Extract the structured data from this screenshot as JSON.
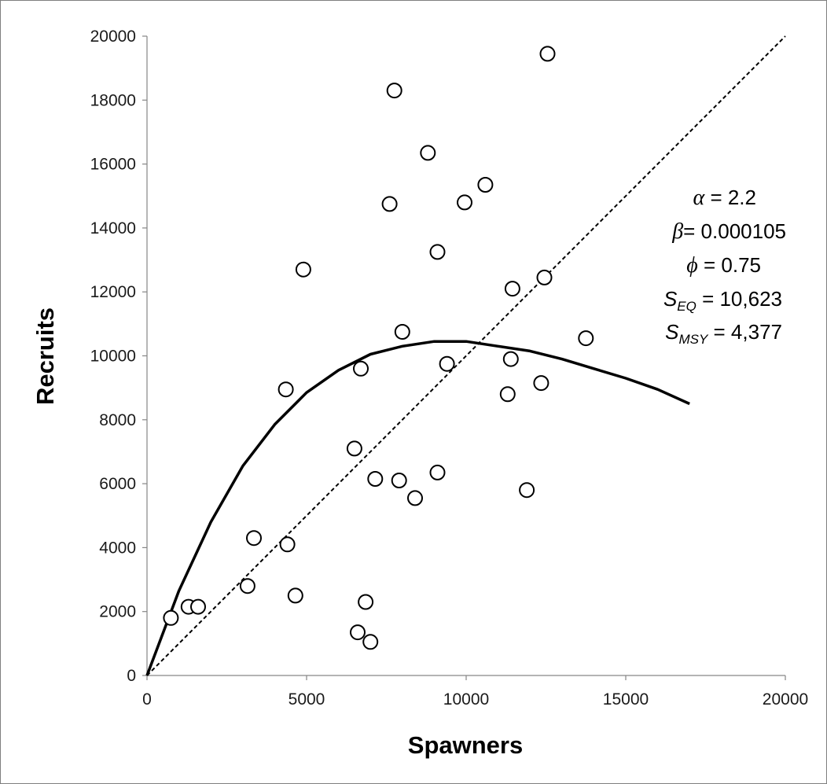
{
  "chart_data": {
    "type": "scatter",
    "title": "",
    "xlabel": "Spawners",
    "ylabel": "Recruits",
    "xlim": [
      0,
      20000
    ],
    "ylim": [
      0,
      20000
    ],
    "x_ticks": [
      "0",
      "5000",
      "10000",
      "15000",
      "20000"
    ],
    "y_ticks": [
      "0",
      "2000",
      "4000",
      "6000",
      "8000",
      "10000",
      "12000",
      "14000",
      "16000",
      "18000",
      "20000"
    ],
    "grid": false,
    "legend": "none",
    "colors": {
      "points": "#000000",
      "curve": "#000000",
      "replacement": "#000000"
    },
    "series": [
      {
        "kind": "points",
        "x": [
          750,
          1300,
          1600,
          3150,
          3350,
          4350,
          4400,
          4650,
          4900,
          6500,
          6600,
          6700,
          6850,
          7000,
          7150,
          7600,
          7750,
          7900,
          8000,
          8400,
          8800,
          9100,
          9100,
          9400,
          9950,
          10600,
          11300,
          11400,
          11450,
          11900,
          12350,
          12450,
          12550,
          13750
        ],
        "y": [
          1800,
          2150,
          2150,
          2800,
          4300,
          8950,
          4100,
          2500,
          12700,
          7100,
          1350,
          9600,
          2300,
          1050,
          6150,
          14750,
          18300,
          6100,
          10750,
          5550,
          16350,
          13250,
          6350,
          9750,
          14800,
          15350,
          8800,
          9900,
          12100,
          5800,
          9150,
          12450,
          19450,
          10550
        ]
      },
      {
        "kind": "ricker-curve",
        "x": [
          0,
          1000,
          2000,
          3000,
          4000,
          5000,
          6000,
          7000,
          8000,
          9000,
          10000,
          11000,
          12000,
          13000,
          14000,
          15000,
          16000,
          17000
        ],
        "y": [
          0,
          2650,
          4800,
          6550,
          7850,
          8850,
          9550,
          10050,
          10300,
          10450,
          10450,
          10300,
          10150,
          9900,
          9600,
          9300,
          8950,
          8500
        ]
      },
      {
        "kind": "replacement-line",
        "x": [
          0,
          20000
        ],
        "y": [
          0,
          20000
        ]
      }
    ],
    "annotations": {
      "alpha": {
        "symbol": "α",
        "text": " = 2.2"
      },
      "beta": {
        "symbol": "β",
        "text": "= 0.000105"
      },
      "phi": {
        "symbol": "ϕ",
        "text": " = 0.75"
      },
      "seq": {
        "symbol": "S",
        "sub": "EQ",
        "text": " = 10,623"
      },
      "smsy": {
        "symbol": "S",
        "sub": "MSY",
        "text": " = 4,377"
      }
    }
  }
}
